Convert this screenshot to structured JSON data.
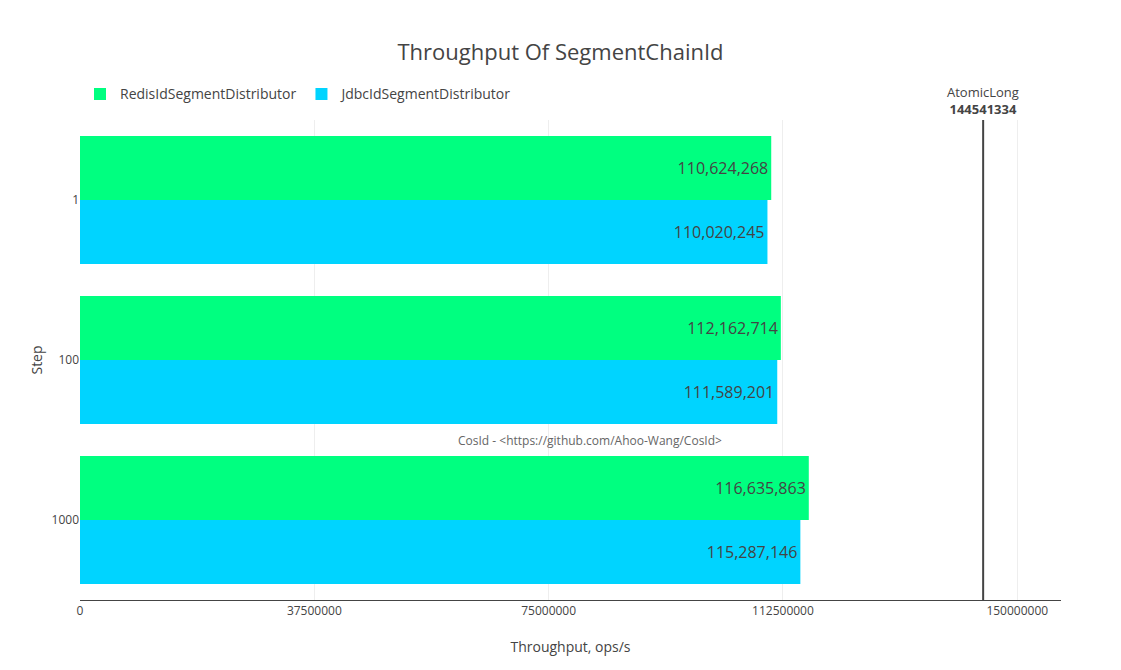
{
  "chart_data": {
    "type": "bar",
    "orientation": "horizontal",
    "title": "Throughput Of SegmentChainId",
    "xlabel": "Throughput, ops/s",
    "ylabel": "Step",
    "categories": [
      "1000",
      "100",
      "1"
    ],
    "series": [
      {
        "name": "RedisIdSegmentDistributor",
        "color": "#00ff80",
        "values": [
          116635863,
          112162714,
          110624268
        ],
        "value_labels": [
          "116,635,863",
          "112,162,714",
          "110,624,268"
        ]
      },
      {
        "name": "JdbcIdSegmentDistributor",
        "color": "#00d4ff",
        "values": [
          115287146,
          111589201,
          110020245
        ],
        "value_labels": [
          "115,287,146",
          "111,589,201",
          "110,020,245"
        ]
      }
    ],
    "xlim": [
      0,
      157000000
    ],
    "xticks": [
      0,
      37500000,
      75000000,
      112500000,
      150000000
    ],
    "grid": true,
    "legend": "top",
    "data_labels": true,
    "annotations": [
      "CosId - <https://github.com/Ahoo-Wang/CosId>"
    ],
    "reference_lines": [
      {
        "name": "AtomicLong",
        "value": 144541334,
        "label": "144541334"
      }
    ]
  }
}
